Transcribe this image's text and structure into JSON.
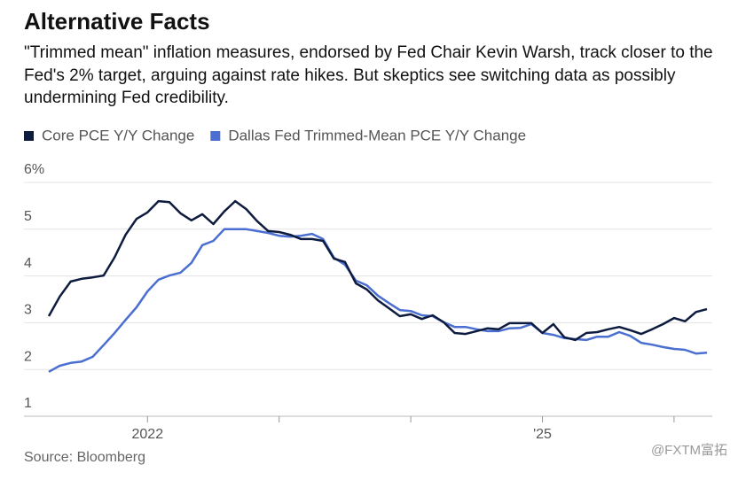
{
  "chart_data": {
    "type": "line",
    "title": "Alternative Facts",
    "subtitle": "\"Trimmed mean\" inflation measures, endorsed by Fed Chair Kevin Warsh, track closer to the Fed's 2% target, arguing against rate hikes. But skeptics see switching data as possibly undermining Fed credibility.",
    "source": "Source: Bloomberg",
    "watermark": "@FXTM富拓",
    "categories": [
      null,
      null,
      null,
      null,
      null,
      null,
      null,
      null,
      null,
      "2022",
      null,
      null,
      null,
      null,
      null,
      null,
      null,
      null,
      null,
      null,
      null,
      null,
      null,
      null,
      null,
      null,
      null,
      null,
      null,
      null,
      null,
      null,
      null,
      null,
      null,
      null,
      null,
      null,
      null,
      null,
      null,
      null,
      null,
      null,
      null,
      "'25",
      null,
      null,
      null,
      null,
      null,
      null,
      null,
      null,
      null,
      null,
      null,
      null,
      null,
      null,
      null
    ],
    "series": [
      {
        "name": "Core PCE Y/Y Change",
        "color": "#0d1b3e",
        "values": [
          3.14,
          3.56,
          3.88,
          3.94,
          3.97,
          4.01,
          4.4,
          4.88,
          5.22,
          5.36,
          5.6,
          5.58,
          5.34,
          5.19,
          5.32,
          5.11,
          5.38,
          5.6,
          5.43,
          5.17,
          4.96,
          4.94,
          4.88,
          4.79,
          4.79,
          4.75,
          4.37,
          4.3,
          3.84,
          3.71,
          3.48,
          3.31,
          3.14,
          3.18,
          3.08,
          3.16,
          3.01,
          2.78,
          2.76,
          2.82,
          2.88,
          2.86,
          2.99,
          2.99,
          2.99,
          2.78,
          2.97,
          2.69,
          2.63,
          2.78,
          2.8,
          2.86,
          2.91,
          2.84,
          2.76,
          2.86,
          2.97,
          3.1,
          3.03,
          3.23,
          3.29
        ]
      },
      {
        "name": "Dallas Fed Trimmed-Mean PCE Y/Y Change",
        "color": "#4a6fd1",
        "values": [
          1.95,
          2.08,
          2.14,
          2.17,
          2.27,
          2.52,
          2.78,
          3.06,
          3.33,
          3.67,
          3.92,
          4.01,
          4.07,
          4.28,
          4.66,
          4.75,
          5.0,
          5.0,
          5.0,
          4.96,
          4.92,
          4.86,
          4.84,
          4.86,
          4.9,
          4.79,
          4.39,
          4.24,
          3.9,
          3.8,
          3.58,
          3.42,
          3.27,
          3.25,
          3.16,
          3.14,
          3.01,
          2.91,
          2.91,
          2.86,
          2.82,
          2.82,
          2.88,
          2.89,
          2.97,
          2.78,
          2.74,
          2.67,
          2.65,
          2.63,
          2.7,
          2.7,
          2.8,
          2.72,
          2.57,
          2.53,
          2.48,
          2.44,
          2.42,
          2.34,
          2.36
        ]
      }
    ],
    "ylim": [
      1,
      6
    ],
    "yticks": [
      1,
      2,
      3,
      4,
      5,
      {
        "value": 6,
        "label": "6%"
      }
    ],
    "grid": true
  }
}
